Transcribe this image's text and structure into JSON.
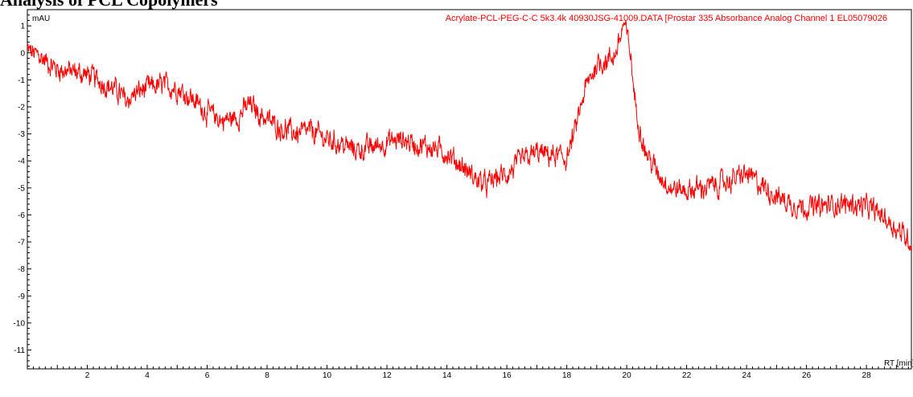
{
  "page": {
    "heading": "Analysis of PCL Copolymers"
  },
  "chart_data": {
    "type": "line",
    "title": "Acrylate-PCL-PEG-C-C 5k3.4k 40930JSG-41009.DATA [Prostar 335 Absorbance Analog Channel 1 EL05079026",
    "ylabel": "mAU",
    "xlabel": "RT [min]",
    "xlim": [
      0,
      29.5
    ],
    "ylim": [
      -11.7,
      1.6
    ],
    "x_ticks": [
      2,
      4,
      6,
      8,
      10,
      12,
      14,
      16,
      18,
      20,
      22,
      24,
      26,
      28
    ],
    "y_ticks": [
      1,
      0,
      -1,
      -2,
      -3,
      -4,
      -5,
      -6,
      -7,
      -8,
      -9,
      -10,
      -11
    ],
    "grid": false,
    "line_color": "#ff0000",
    "series": [
      {
        "x": [
          0,
          0.5,
          1,
          1.5,
          2,
          2.5,
          3,
          3.3,
          3.6,
          4,
          4.5,
          5,
          5.5,
          6,
          6.5,
          7,
          7.4,
          7.8,
          8.3,
          9,
          9.5,
          10,
          10.5,
          11,
          11.5,
          12,
          12.5,
          13,
          13.5,
          14,
          14.5,
          15,
          15.3,
          15.7,
          16,
          16.5,
          17,
          17.5,
          18,
          18.3,
          18.6,
          19,
          19.3,
          19.6,
          19.8,
          19.9,
          20.1,
          20.3,
          20.6,
          21,
          21.5,
          22,
          22.5,
          23,
          23.5,
          24,
          24.5,
          25,
          25.5,
          26,
          26.5,
          27,
          27.5,
          28,
          28.5,
          29,
          29.5
        ],
        "y": [
          0.1,
          -0.2,
          -0.6,
          -0.7,
          -0.8,
          -1.1,
          -1.4,
          -1.8,
          -1.5,
          -1.3,
          -1.2,
          -1.3,
          -1.7,
          -2.2,
          -2.5,
          -2.4,
          -1.9,
          -2.3,
          -2.7,
          -3.0,
          -2.9,
          -3.2,
          -3.4,
          -3.6,
          -3.5,
          -3.3,
          -3.2,
          -3.4,
          -3.5,
          -3.7,
          -4.2,
          -4.7,
          -4.9,
          -4.6,
          -4.5,
          -4.0,
          -3.7,
          -3.8,
          -3.9,
          -2.8,
          -1.4,
          -0.4,
          -0.3,
          -0.1,
          0.6,
          1.1,
          0.2,
          -2.0,
          -3.6,
          -4.4,
          -5.0,
          -5.1,
          -5.0,
          -4.9,
          -4.7,
          -4.5,
          -4.9,
          -5.3,
          -5.6,
          -5.7,
          -5.7,
          -5.6,
          -5.6,
          -5.7,
          -6.0,
          -6.5,
          -7.0
        ]
      }
    ]
  }
}
